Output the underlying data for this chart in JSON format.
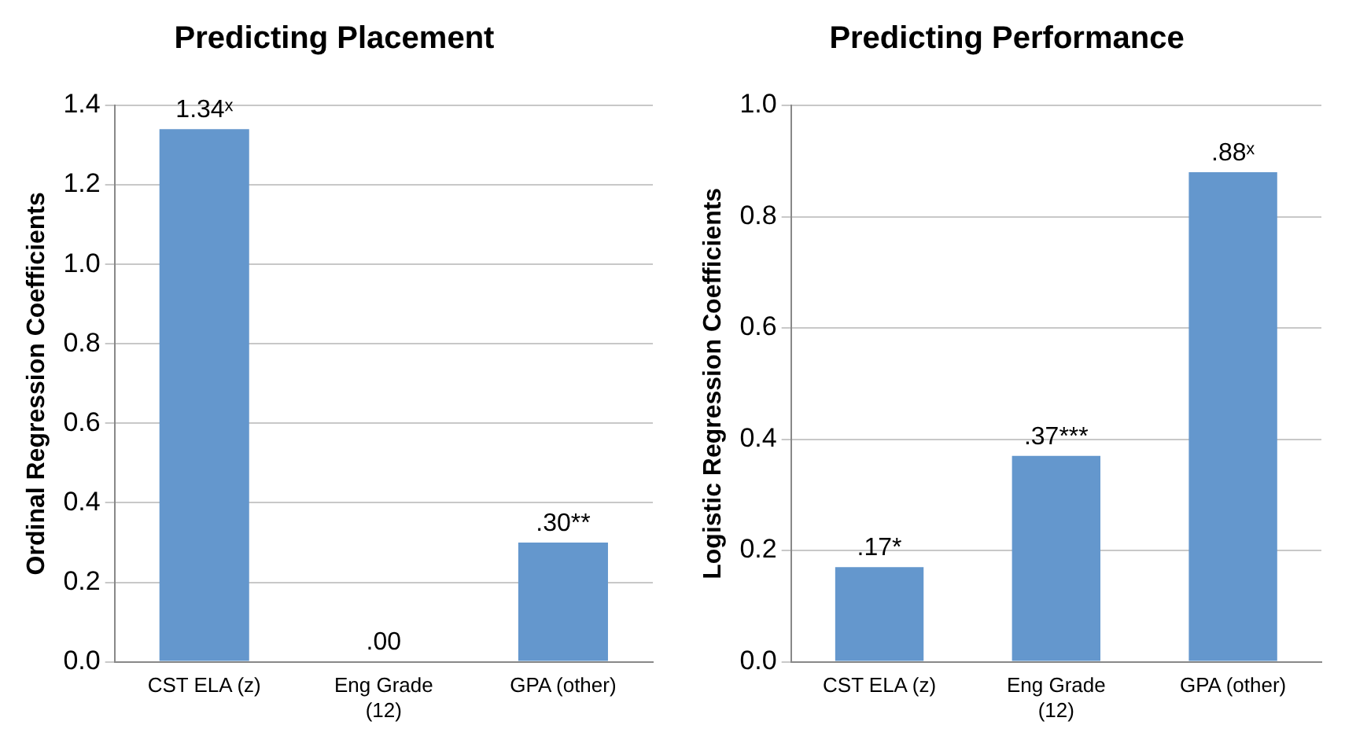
{
  "chart_data": [
    {
      "type": "bar",
      "title": "Predicting Placement",
      "ylabel": "Ordinal Regression Coefficients",
      "categories": [
        "CST ELA (z)",
        "Eng Grade (12)",
        "GPA (other)"
      ],
      "values": [
        1.34,
        0.0,
        0.3
      ],
      "color": "#6497cd",
      "value_labels": [
        "1.34ˣ",
        ".00",
        ".30**"
      ],
      "ylim": [
        0,
        1.4
      ],
      "yticks": [
        {
          "value": 0,
          "label": "0.0"
        },
        {
          "value": 0.2,
          "label": "0.2"
        },
        {
          "value": 0.4,
          "label": "0.4"
        },
        {
          "value": 0.6,
          "label": "0.6"
        },
        {
          "value": 0.8,
          "label": "0.8"
        },
        {
          "value": 1,
          "label": "1.0"
        },
        {
          "value": 1.2,
          "label": "1.2"
        },
        {
          "value": 1.4,
          "label": "1.4"
        }
      ],
      "grid": "y",
      "legend": false
    },
    {
      "type": "bar",
      "title": "Predicting Performance",
      "ylabel": "Logistic Regression Coefficients",
      "categories": [
        "CST ELA (z)",
        "Eng Grade (12)",
        "GPA (other)"
      ],
      "values": [
        0.17,
        0.37,
        0.88
      ],
      "color": "#6497cd",
      "value_labels": [
        ".17*",
        ".37***",
        ".88ˣ"
      ],
      "ylim": [
        0,
        1
      ],
      "yticks": [
        {
          "value": 0,
          "label": "0.0"
        },
        {
          "value": 0.2,
          "label": "0.2"
        },
        {
          "value": 0.4,
          "label": "0.4"
        },
        {
          "value": 0.6,
          "label": "0.6"
        },
        {
          "value": 0.8,
          "label": "0.8"
        },
        {
          "value": 1,
          "label": "1.0"
        }
      ],
      "grid": "y",
      "legend": false
    }
  ]
}
